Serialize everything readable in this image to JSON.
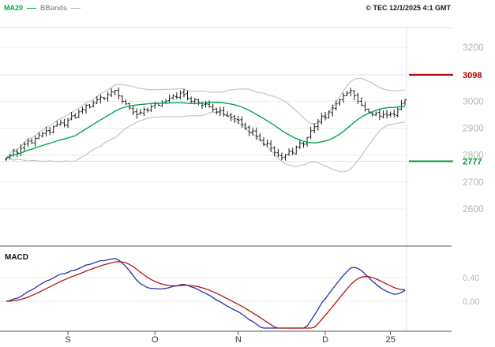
{
  "header": {
    "ma20_label": "MA20",
    "bbands_label": "BBands",
    "copyright": "© TEC 12/1/2025 4:1 GMT"
  },
  "colors": {
    "candle": "#1a1a1a",
    "ma20": "#00a651",
    "bbands": "#c4c4c4",
    "macd_line": "#2233aa",
    "macd_signal": "#b01818",
    "resistance": "#aa0000",
    "support": "#009933",
    "axis_text": "#b4b4b4",
    "grid": "#ececec",
    "frame": "#555555"
  },
  "y_axis": {
    "ticks": [
      {
        "label": "3200",
        "value": 3200
      },
      {
        "label": "3000",
        "value": 3000
      },
      {
        "label": "2900",
        "value": 2900
      },
      {
        "label": "2800",
        "value": 2800
      },
      {
        "label": "2700",
        "value": 2700
      },
      {
        "label": "2600",
        "value": 2600
      }
    ],
    "levels": [
      {
        "label": "3098",
        "value": 3098,
        "kind": "resistance",
        "color": "#aa0000"
      },
      {
        "label": "2777",
        "value": 2777,
        "kind": "support",
        "color": "#009933"
      }
    ]
  },
  "x_axis": {
    "labels": [
      {
        "label": "S",
        "bar": 17
      },
      {
        "label": "O",
        "bar": 41
      },
      {
        "label": "N",
        "bar": 64
      },
      {
        "label": "D",
        "bar": 88
      },
      {
        "label": "25",
        "bar": 106
      }
    ]
  },
  "macd_axis": {
    "label": "MACD",
    "ticks": [
      {
        "label": "0.40",
        "value": 0.4
      },
      {
        "label": "0.00",
        "value": 0.0
      }
    ]
  },
  "chart_data": {
    "type": "candlestick",
    "title": "",
    "price_ylim": [
      2469,
      3273
    ],
    "levels": {
      "resistance": 3098,
      "support": 2777
    },
    "closes": [
      2790,
      2800,
      2815,
      2808,
      2825,
      2840,
      2852,
      2845,
      2862,
      2875,
      2880,
      2890,
      2885,
      2905,
      2915,
      2920,
      2912,
      2930,
      2945,
      2938,
      2960,
      2970,
      2985,
      2978,
      2995,
      3005,
      3015,
      3008,
      3025,
      3035,
      3040,
      3020,
      3000,
      2990,
      2975,
      2960,
      2950,
      2958,
      2970,
      2965,
      2980,
      2990,
      2985,
      2995,
      3000,
      3010,
      3020,
      3015,
      3030,
      3025,
      3010,
      3000,
      3005,
      2995,
      2985,
      2990,
      2980,
      2970,
      2960,
      2965,
      2950,
      2945,
      2940,
      2935,
      2930,
      2915,
      2900,
      2885,
      2890,
      2870,
      2855,
      2840,
      2845,
      2825,
      2810,
      2800,
      2790,
      2800,
      2815,
      2808,
      2830,
      2845,
      2840,
      2865,
      2890,
      2905,
      2925,
      2945,
      2938,
      2960,
      2975,
      2990,
      3005,
      3020,
      3030,
      3040,
      3020,
      3000,
      2985,
      2970,
      2960,
      2950,
      2955,
      2945,
      2950,
      2948,
      2952,
      2950,
      2970,
      2990,
      3005
    ],
    "indicators": {
      "ma20": {
        "window": 20
      },
      "bbands": {
        "window": 20,
        "stddev": 2
      },
      "macd": {
        "fast": 12,
        "slow": 26,
        "signal": 9
      }
    }
  }
}
